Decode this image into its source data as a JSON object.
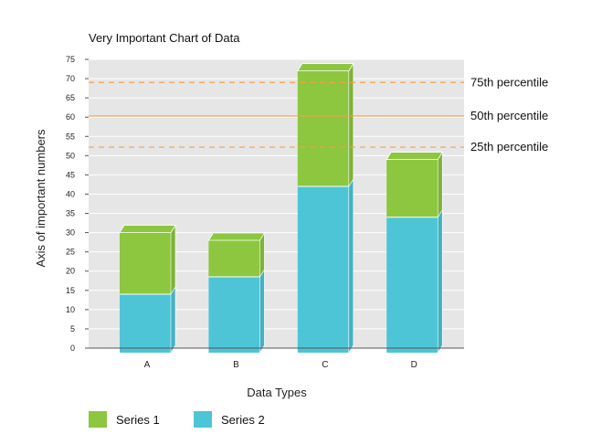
{
  "chart_data": {
    "type": "bar",
    "stacked": true,
    "title": "Very Important Chart of Data",
    "xlabel": "Data Types",
    "ylabel": "Axis of important numbers",
    "categories": [
      "A",
      "B",
      "C",
      "D"
    ],
    "series": [
      {
        "name": "Series 2",
        "color": "#4dc5d6",
        "values": [
          14,
          18.5,
          42,
          34
        ]
      },
      {
        "name": "Series 1",
        "color": "#8dc63f",
        "values": [
          16,
          9.5,
          30,
          15
        ]
      }
    ],
    "legend_order": [
      1,
      0
    ],
    "ylim": [
      0,
      75
    ],
    "yticks": [
      0,
      5,
      10,
      15,
      20,
      25,
      30,
      35,
      40,
      45,
      50,
      55,
      60,
      65,
      70,
      75
    ],
    "grid": true,
    "legend_position": "bottom-left",
    "reference_lines": [
      {
        "label": "75th percentile",
        "value": 69,
        "style": "dashed",
        "color": "#f5a04a"
      },
      {
        "label": "50th percentile",
        "value": 60.3,
        "style": "solid",
        "color": "#f5a04a"
      },
      {
        "label": "25th percentile",
        "value": 52.2,
        "style": "dashed",
        "color": "#f5a04a"
      }
    ]
  }
}
